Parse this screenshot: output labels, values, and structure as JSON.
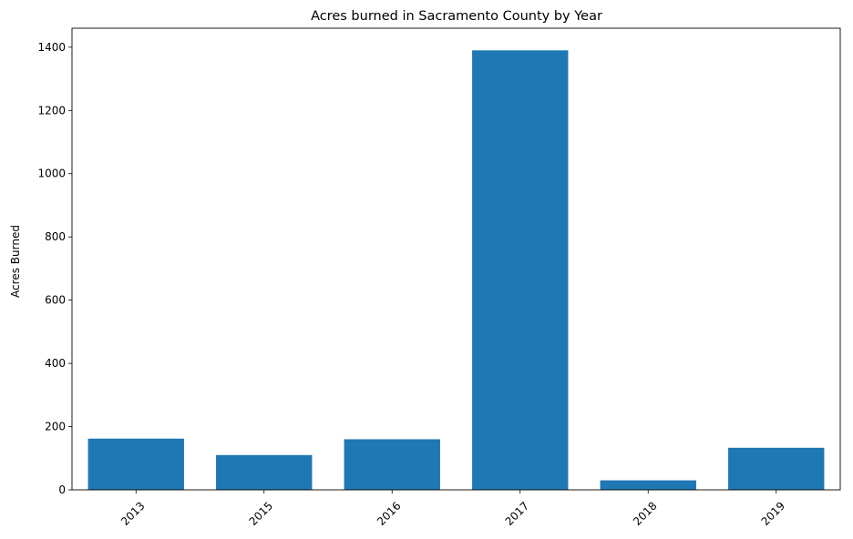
{
  "chart_data": {
    "type": "bar",
    "title": "Acres burned in Sacramento County by Year",
    "xlabel": "",
    "ylabel": "Acres Burned",
    "categories": [
      "2013",
      "2015",
      "2016",
      "2017",
      "2018",
      "2019"
    ],
    "values": [
      162,
      110,
      160,
      1390,
      30,
      133
    ],
    "ylim": [
      0,
      1460
    ],
    "yticks": [
      "0",
      "200",
      "400",
      "600",
      "800",
      "1000",
      "1200",
      "1400"
    ],
    "grid": false,
    "bar_color": "#1f77b4"
  }
}
